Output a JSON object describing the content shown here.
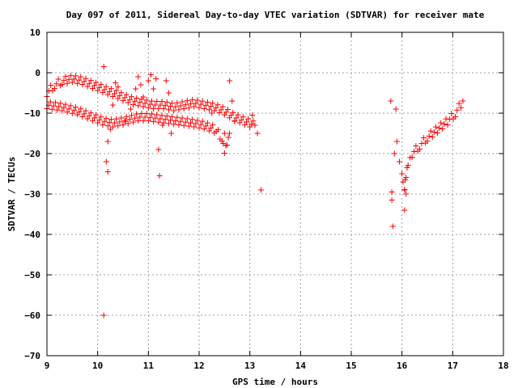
{
  "chart_data": {
    "type": "scatter",
    "title": "Day 097 of 2011, Sidereal Day-to-day VTEC variation (SDTVAR) for receiver mate",
    "xlabel": "GPS time / hours",
    "ylabel": "SDTVAR / TECUs",
    "xlim": [
      9,
      18
    ],
    "ylim": [
      -70,
      10
    ],
    "xticks": [
      "9",
      "10",
      "11",
      "12",
      "13",
      "14",
      "15",
      "16",
      "17",
      "18"
    ],
    "yticks": [
      "10",
      "0",
      "−10",
      "−20",
      "−30",
      "−40",
      "−50",
      "−60",
      "−70"
    ],
    "grid": true,
    "legend": "none",
    "marker": "plus",
    "color": "#ff0000",
    "series": [
      {
        "band": [
          [
            9.0,
            -5
          ],
          [
            9.15,
            -3
          ],
          [
            9.3,
            -2
          ],
          [
            9.5,
            -1.5
          ],
          [
            9.7,
            -2
          ],
          [
            9.9,
            -3
          ],
          [
            10.1,
            -4
          ],
          [
            10.3,
            -5
          ],
          [
            10.5,
            -6
          ],
          [
            10.7,
            -7
          ],
          [
            10.9,
            -7.5
          ],
          [
            11.1,
            -8
          ],
          [
            11.3,
            -8
          ],
          [
            11.5,
            -8.5
          ],
          [
            11.7,
            -8
          ],
          [
            11.9,
            -7.5
          ],
          [
            12.1,
            -8
          ],
          [
            12.3,
            -8.5
          ],
          [
            12.5,
            -9.5
          ],
          [
            12.7,
            -11
          ],
          [
            12.9,
            -12
          ],
          [
            13.1,
            -13
          ]
        ],
        "points": [
          [
            10.12,
            1.5
          ],
          [
            10.17,
            -22
          ],
          [
            10.2,
            -24.5
          ],
          [
            10.2,
            -17
          ],
          [
            10.25,
            -14
          ],
          [
            10.3,
            -8
          ],
          [
            10.35,
            -2.5
          ],
          [
            10.4,
            -3.5
          ],
          [
            10.55,
            -12
          ],
          [
            10.65,
            -9
          ],
          [
            10.75,
            -4
          ],
          [
            10.8,
            -1
          ],
          [
            10.85,
            -3
          ],
          [
            10.9,
            -6
          ],
          [
            11.0,
            -2
          ],
          [
            11.05,
            -0.5
          ],
          [
            11.1,
            -4
          ],
          [
            11.15,
            -1.5
          ],
          [
            11.2,
            -19
          ],
          [
            11.22,
            -25.5
          ],
          [
            11.28,
            -13
          ],
          [
            11.35,
            -2
          ],
          [
            11.4,
            -5
          ],
          [
            11.45,
            -15
          ],
          [
            12.25,
            -10
          ],
          [
            12.5,
            -15
          ],
          [
            12.6,
            -2
          ],
          [
            12.65,
            -7
          ],
          [
            12.7,
            -12
          ],
          [
            13.05,
            -10.5
          ],
          [
            13.15,
            -15
          ],
          [
            13.22,
            -29
          ],
          [
            10.12,
            -60
          ]
        ]
      },
      {
        "band": [
          [
            9.0,
            -8
          ],
          [
            9.3,
            -8.5
          ],
          [
            9.6,
            -9.5
          ],
          [
            9.9,
            -11
          ],
          [
            10.1,
            -12
          ],
          [
            10.3,
            -12.5
          ],
          [
            10.5,
            -12
          ],
          [
            10.8,
            -11
          ],
          [
            11.0,
            -11
          ],
          [
            11.3,
            -11.5
          ],
          [
            11.6,
            -12
          ],
          [
            11.9,
            -12.5
          ],
          [
            12.1,
            -13
          ],
          [
            12.3,
            -14
          ],
          [
            12.45,
            -16
          ],
          [
            12.5,
            -19
          ],
          [
            12.55,
            -17
          ],
          [
            12.6,
            -15
          ]
        ],
        "points": []
      },
      {
        "band": [
          [
            16.05,
            -28
          ],
          [
            16.08,
            -25
          ],
          [
            16.12,
            -22
          ],
          [
            16.2,
            -20
          ],
          [
            16.35,
            -18
          ],
          [
            16.5,
            -16
          ],
          [
            16.7,
            -14
          ],
          [
            16.9,
            -12
          ],
          [
            17.05,
            -10
          ],
          [
            17.2,
            -7
          ]
        ],
        "points": [
          [
            15.78,
            -7
          ],
          [
            15.8,
            -29.5
          ],
          [
            15.8,
            -31.5
          ],
          [
            15.82,
            -38
          ],
          [
            15.85,
            -20
          ],
          [
            15.88,
            -9
          ],
          [
            15.9,
            -17
          ],
          [
            15.95,
            -22
          ],
          [
            16.0,
            -25
          ],
          [
            16.02,
            -27
          ],
          [
            16.05,
            -29
          ],
          [
            16.05,
            -34
          ],
          [
            16.08,
            -30
          ]
        ]
      }
    ]
  }
}
